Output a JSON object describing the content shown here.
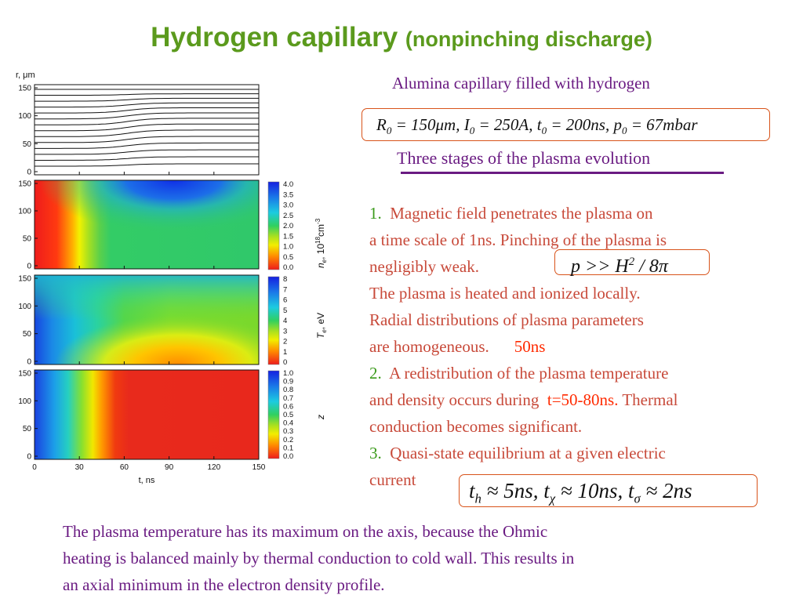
{
  "title": {
    "main": "Hydrogen capillary",
    "sub": "(nonpinching discharge)"
  },
  "figure": {
    "top_axis_label": "r, μm",
    "r_ticks": [
      "150",
      "100",
      "50",
      "0"
    ],
    "t_ticks": [
      "0",
      "30",
      "60",
      "90",
      "120",
      "150"
    ],
    "x_axis_label": "t, ns",
    "panels": [
      {
        "name": "density",
        "label": "n_e, 10^18 cm^-3",
        "label_main": "n",
        "label_sub": "e",
        "label_tail": ", 10",
        "label_exp": "18",
        "label_unit": "cm",
        "label_unit_exp": "-3",
        "colorbar_ticks": [
          "4.0",
          "3.5",
          "3.0",
          "2.5",
          "2.0",
          "1.5",
          "1.0",
          "0.5",
          "0.0"
        ]
      },
      {
        "name": "temperature",
        "label": "T_e, eV",
        "label_main": "T",
        "label_sub": "e",
        "label_tail": ", eV",
        "colorbar_ticks": [
          "8",
          "7",
          "6",
          "5",
          "4",
          "3",
          "2",
          "1",
          "0"
        ]
      },
      {
        "name": "ionization",
        "label": "z",
        "colorbar_ticks": [
          "1.0",
          "0.9",
          "0.8",
          "0.7",
          "0.6",
          "0.5",
          "0.4",
          "0.3",
          "0.2",
          "0.1",
          "0.0"
        ]
      }
    ]
  },
  "right": {
    "intro": "Alumina capillary filled with hydrogen",
    "params_formula": "R0 = 150μm, I0 = 250A, t0 = 200ns, p0 = 67mbar",
    "stages_heading": "Three stages of the plasma evolution",
    "stage1_num": "1.",
    "stage1_line1": "Magnetic field penetrates the plasma on",
    "stage1_line2": "a time scale of 1ns. Pinching of the plasma is",
    "stage1_line3": "negligibly weak.",
    "pressure_formula": "p >> H^2 / 8π",
    "stage1_line4": "The plasma is heated and ionized locally.",
    "stage1_line5": "Radial distributions of plasma parameters",
    "stage1_line6": "are homogeneous.",
    "stage1_time": "50ns",
    "stage2_num": "2.",
    "stage2_line1": "A redistribution of the plasma temperature",
    "stage2_line2a": "and density occurs during",
    "stage2_time": "t=50-80ns.",
    "stage2_line2b": "Thermal",
    "stage2_line3": "conduction becomes significant.",
    "stage3_num": "3.",
    "stage3_line1": "Quasi-state equilibrium at a given electric",
    "stage3_line2": "current",
    "times_formula": "t_h ≈ 5ns, t_χ ≈ 10ns, t_σ ≈ 2ns"
  },
  "bottom_text": {
    "line1": "The plasma temperature has its maximum on the axis, because the Ohmic",
    "line2": "heating is balanced mainly by thermal conduction to cold wall. This results in",
    "line3": "an axial minimum in the electron density profile."
  }
}
